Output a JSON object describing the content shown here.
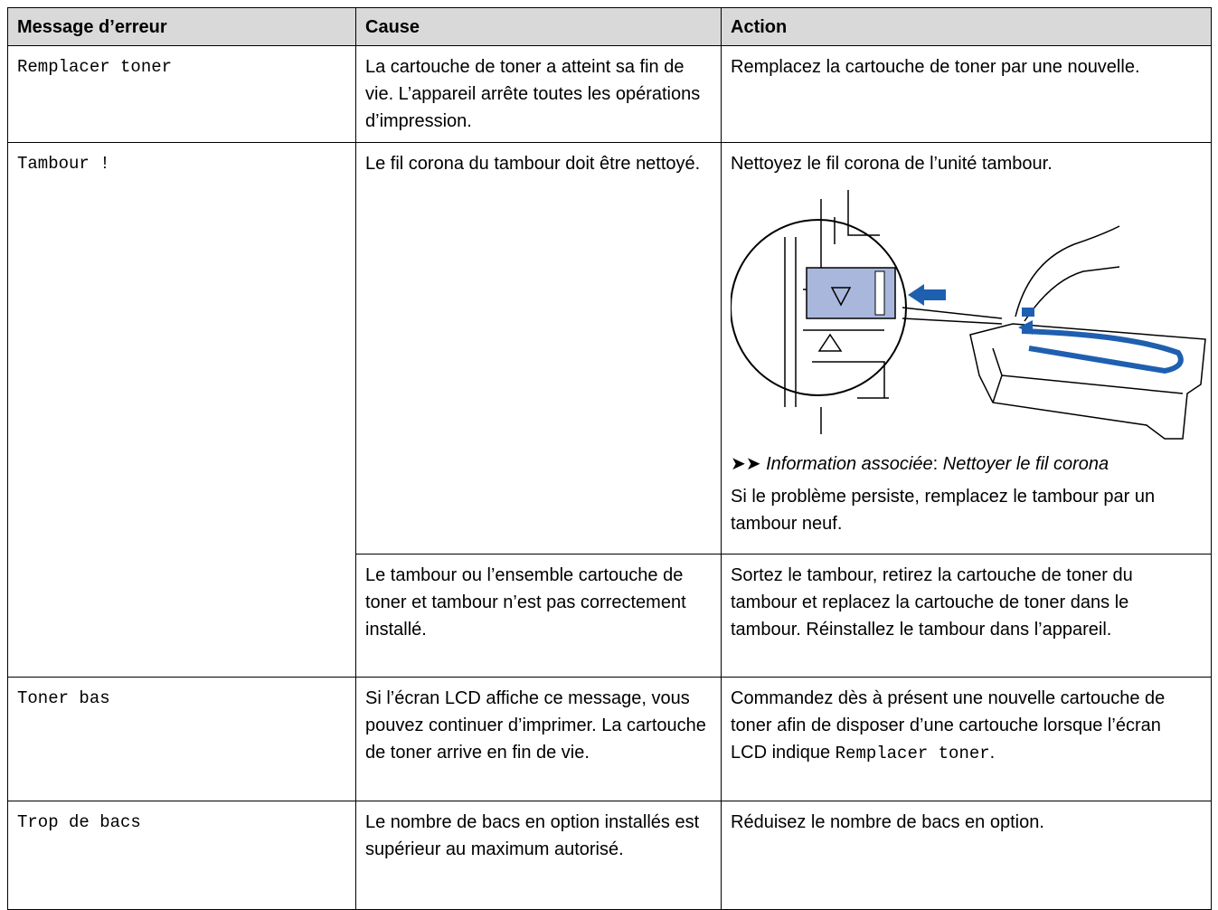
{
  "table": {
    "headers": [
      "Message d’erreur",
      "Cause",
      "Action"
    ],
    "rows": [
      {
        "message": "Remplacer toner",
        "entries": [
          {
            "cause": "La cartouche de toner a atteint sa fin de vie. L’appareil arrête toutes les opérations d’impression.",
            "action": "Remplacez la cartouche de toner par une nouvelle."
          }
        ]
      },
      {
        "message": "Tambour !",
        "entries": [
          {
            "cause": "Le fil corona du tambour doit être nettoyé.",
            "action": "Nettoyez le fil corona de l’unité tambour.",
            "related_label": "Information associée",
            "related_separator": ":",
            "related_link": "Nettoyer le fil corona",
            "action_more": "Si le problème persiste, remplacez le tambour par un tambour neuf."
          },
          {
            "cause": "Le tambour ou l’ensemble cartouche de toner et tambour n’est pas correctement installé.",
            "action": "Sortez le tambour, retirez la cartouche de toner du tambour et replacez la cartouche de toner dans le tambour. Réinstallez le tambour dans l’appareil."
          }
        ]
      },
      {
        "message": "Toner bas",
        "entries": [
          {
            "cause": "Si l’écran LCD affiche ce message, vous pouvez continuer d’imprimer. La cartouche de toner arrive en fin de vie.",
            "action": "Commandez dès à présent une nouvelle cartouche de toner afin de disposer d’une cartouche lorsque l’écran LCD indique",
            "action_code": "Remplacer toner",
            "action_end": "."
          }
        ]
      },
      {
        "message": "Trop de bacs",
        "entries": [
          {
            "cause": "Le nombre de bacs en option installés est supérieur au maximum autorisé.",
            "action": "Réduisez le nombre de bacs en option."
          }
        ]
      }
    ]
  }
}
